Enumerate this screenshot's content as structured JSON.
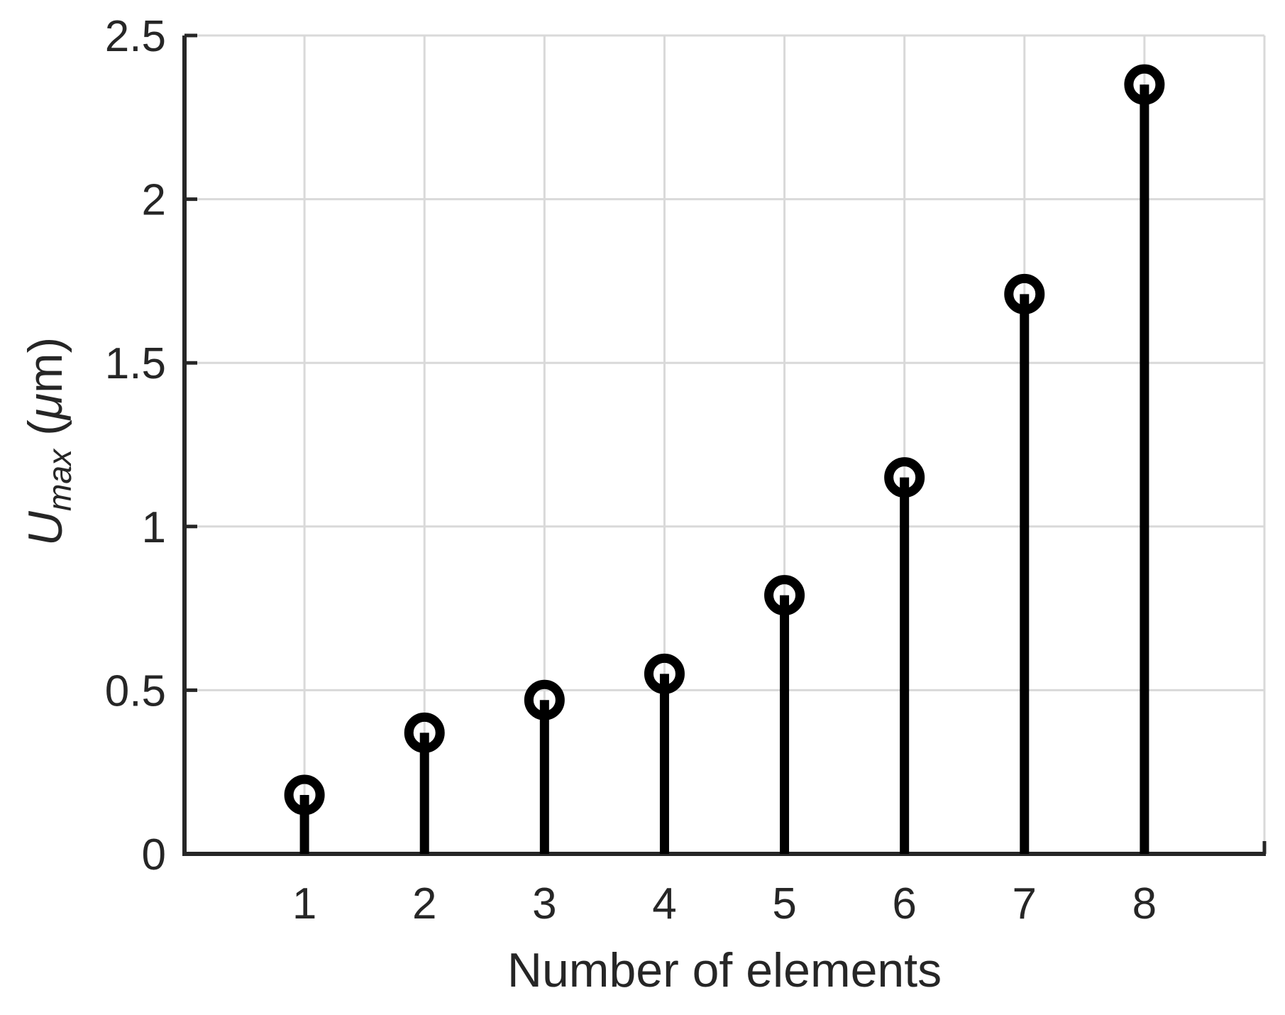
{
  "chart_data": {
    "type": "stem",
    "title": "",
    "xlabel": "Number of elements",
    "ylabel": "U_max (μm)",
    "ylabel_parts": {
      "var": "U",
      "sub": "max",
      "open": " (",
      "mu": "μ",
      "close": "m)"
    },
    "x": [
      1,
      2,
      3,
      4,
      5,
      6,
      7,
      8
    ],
    "values": [
      0.18,
      0.37,
      0.47,
      0.55,
      0.79,
      1.15,
      1.71,
      2.35
    ],
    "xlim": [
      0,
      9
    ],
    "ylim": [
      0,
      2.5
    ],
    "xticks": [
      1,
      2,
      3,
      4,
      5,
      6,
      7,
      8
    ],
    "xtick_labels": [
      "1",
      "2",
      "3",
      "4",
      "5",
      "6",
      "7",
      "8"
    ],
    "yticks": [
      0,
      0.5,
      1,
      1.5,
      2,
      2.5
    ],
    "ytick_labels": [
      "0",
      "0.5",
      "1",
      "1.5",
      "2",
      "2.5"
    ],
    "grid": true,
    "legend": null,
    "marker": "open-circle",
    "colors": {
      "stem": "#000000",
      "axis": "#262626",
      "grid": "#d9d9d9",
      "text": "#262626",
      "background": "#ffffff"
    }
  }
}
